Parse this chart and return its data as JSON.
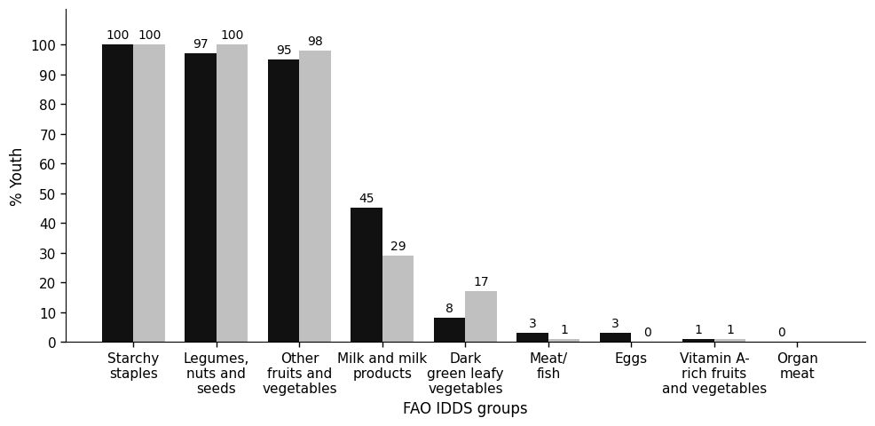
{
  "categories": [
    "Starchy\nstaples",
    "Legumes,\nnuts and\nseeds",
    "Other\nfruits and\nvegetables",
    "Milk and milk\nproducts",
    "Dark\ngreen leafy\nvegetables",
    "Meat/\nfish",
    "Eggs",
    "Vitamin A-\nrich fruits\nand vegetables",
    "Organ\nmeat"
  ],
  "black_values": [
    100,
    97,
    95,
    45,
    8,
    3,
    3,
    1,
    0
  ],
  "grey_values": [
    100,
    100,
    98,
    29,
    17,
    1,
    0,
    1,
    0
  ],
  "black_color": "#111111",
  "grey_color": "#c0c0c0",
  "ylabel": "% Youth",
  "xlabel": "FAO IDDS groups",
  "ylim": [
    0,
    112
  ],
  "yticks": [
    0,
    10,
    20,
    30,
    40,
    50,
    60,
    70,
    80,
    90,
    100
  ],
  "bar_width": 0.38,
  "tick_fontsize": 11,
  "axis_label_fontsize": 12,
  "annotation_fontsize": 10,
  "show_grey_zero": [
    true,
    true,
    true,
    true,
    true,
    true,
    true,
    true,
    false
  ]
}
